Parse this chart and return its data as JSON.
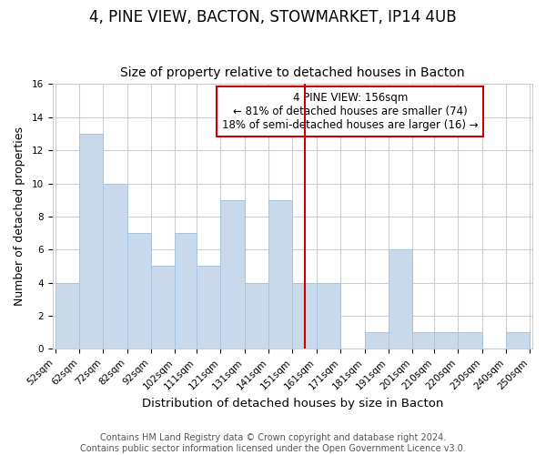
{
  "title": "4, PINE VIEW, BACTON, STOWMARKET, IP14 4UB",
  "subtitle": "Size of property relative to detached houses in Bacton",
  "xlabel": "Distribution of detached houses by size in Bacton",
  "ylabel": "Number of detached properties",
  "bin_edges": [
    52,
    62,
    72,
    82,
    92,
    102,
    111,
    121,
    131,
    141,
    151,
    161,
    171,
    181,
    191,
    201,
    210,
    220,
    230,
    240,
    250
  ],
  "counts": [
    4,
    13,
    10,
    7,
    5,
    7,
    5,
    9,
    4,
    9,
    4,
    4,
    0,
    1,
    6,
    1,
    1,
    1,
    0,
    1
  ],
  "bar_color": "#c9d9ec",
  "bar_edge_color": "#a8c4de",
  "property_size": 156,
  "annotation_title": "4 PINE VIEW: 156sqm",
  "annotation_line1": "← 81% of detached houses are smaller (74)",
  "annotation_line2": "18% of semi-detached houses are larger (16) →",
  "annotation_box_color": "#ffffff",
  "annotation_box_edge_color": "#cc0000",
  "red_line_color": "#cc0000",
  "ylim": [
    0,
    16
  ],
  "yticks": [
    0,
    2,
    4,
    6,
    8,
    10,
    12,
    14,
    16
  ],
  "footer_line1": "Contains HM Land Registry data © Crown copyright and database right 2024.",
  "footer_line2": "Contains public sector information licensed under the Open Government Licence v3.0.",
  "background_color": "#ffffff",
  "grid_color": "#cccccc",
  "title_fontsize": 12,
  "subtitle_fontsize": 10,
  "xlabel_fontsize": 9.5,
  "ylabel_fontsize": 9,
  "tick_label_fontsize": 7.5,
  "footer_fontsize": 7,
  "annotation_fontsize": 8.5
}
